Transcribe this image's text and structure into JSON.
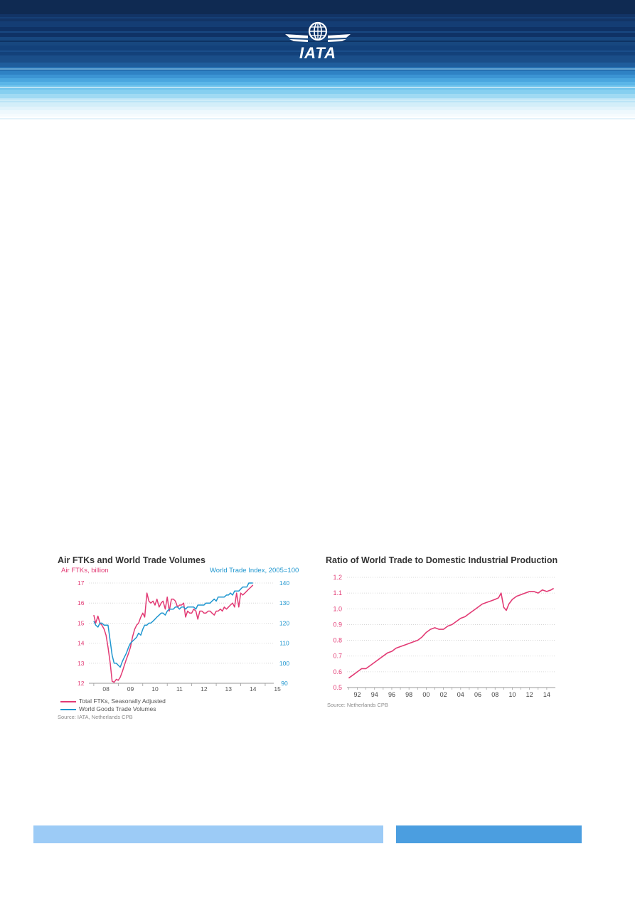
{
  "header": {
    "logo_text": "IATA",
    "colors": {
      "dark_navy": "#0d2f5e",
      "mid_blue": "#1b5fa6",
      "light_blue": "#6fc3ec",
      "pale_blue": "#d6eef9"
    },
    "icon": "globe-wings-icon"
  },
  "charts": {
    "left": {
      "title": "Air FTKs and World Trade Volumes",
      "left_axis_title": "Air FTKs, billion",
      "right_axis_title": "World Trade Index, 2005=100",
      "legend": [
        "Total FTKs, Seasonally Adjusted",
        "World Goods Trade Volumes"
      ],
      "source": "Source: IATA, Netherlands CPB"
    },
    "right": {
      "title": "Ratio of World Trade to Domestic Industrial Production",
      "source": "Source: Netherlands CPB"
    }
  },
  "colors": {
    "ftk": "#e23a74",
    "trade": "#1f96cf",
    "grid": "#cfcfcf",
    "footer_left": "#9ccbf6",
    "footer_right": "#4b9ee0"
  },
  "chart_data": [
    {
      "type": "line",
      "title": "Air FTKs and World Trade Volumes",
      "ylabel": "Air FTKs, billion",
      "y2label": "World Trade Index, 2005=100",
      "xticks": [
        "08",
        "09",
        "10",
        "11",
        "12",
        "13",
        "14",
        "15"
      ],
      "ylim": [
        12,
        17
      ],
      "yticks": [
        "12",
        "13",
        "14",
        "15",
        "16",
        "17"
      ],
      "y2lim": [
        90,
        140
      ],
      "y2ticks": [
        "90",
        "100",
        "110",
        "120",
        "130",
        "140"
      ],
      "grid": true,
      "legend_position": "bottom-left",
      "series": [
        {
          "name": "Total FTKs, Seasonally Adjusted",
          "axis": "left",
          "x": [
            2008.0,
            2008.08,
            2008.17,
            2008.25,
            2008.33,
            2008.42,
            2008.5,
            2008.58,
            2008.67,
            2008.75,
            2008.83,
            2008.92,
            2009.0,
            2009.08,
            2009.17,
            2009.25,
            2009.33,
            2009.42,
            2009.5,
            2009.58,
            2009.67,
            2009.75,
            2009.83,
            2009.92,
            2010.0,
            2010.08,
            2010.17,
            2010.25,
            2010.33,
            2010.42,
            2010.5,
            2010.58,
            2010.67,
            2010.75,
            2010.83,
            2010.92,
            2011.0,
            2011.08,
            2011.17,
            2011.25,
            2011.33,
            2011.42,
            2011.5,
            2011.58,
            2011.67,
            2011.75,
            2011.83,
            2011.92,
            2012.0,
            2012.08,
            2012.17,
            2012.25,
            2012.33,
            2012.42,
            2012.5,
            2012.58,
            2012.67,
            2012.75,
            2012.83,
            2012.92,
            2013.0,
            2013.08,
            2013.17,
            2013.25,
            2013.33,
            2013.42,
            2013.5,
            2013.58,
            2013.67,
            2013.75,
            2013.83,
            2013.92,
            2014.0,
            2014.08,
            2014.17,
            2014.25,
            2014.33,
            2014.42,
            2014.5
          ],
          "y": [
            15.4,
            15.0,
            15.35,
            15.0,
            14.9,
            14.7,
            14.4,
            13.8,
            13.0,
            12.1,
            12.05,
            12.2,
            12.15,
            12.3,
            12.6,
            12.9,
            13.2,
            13.5,
            13.8,
            14.3,
            14.7,
            14.9,
            15.0,
            15.3,
            15.5,
            15.3,
            16.5,
            16.1,
            16.0,
            16.1,
            15.9,
            16.2,
            15.8,
            16.0,
            16.1,
            15.7,
            16.3,
            15.6,
            16.2,
            16.2,
            16.1,
            15.8,
            15.9,
            15.9,
            16.0,
            15.3,
            15.6,
            15.5,
            15.5,
            15.7,
            15.6,
            15.2,
            15.6,
            15.6,
            15.5,
            15.5,
            15.6,
            15.6,
            15.5,
            15.4,
            15.6,
            15.6,
            15.7,
            15.6,
            15.8,
            15.7,
            15.8,
            15.9,
            16.0,
            15.8,
            16.5,
            15.8,
            16.5,
            16.4,
            16.5,
            16.6,
            16.7,
            16.8,
            16.9
          ]
        },
        {
          "name": "World Goods Trade Volumes",
          "axis": "right",
          "x": [
            2008.0,
            2008.08,
            2008.17,
            2008.25,
            2008.33,
            2008.42,
            2008.5,
            2008.58,
            2008.67,
            2008.75,
            2008.83,
            2008.92,
            2009.0,
            2009.08,
            2009.17,
            2009.25,
            2009.33,
            2009.42,
            2009.5,
            2009.58,
            2009.67,
            2009.75,
            2009.83,
            2009.92,
            2010.0,
            2010.08,
            2010.17,
            2010.25,
            2010.33,
            2010.42,
            2010.5,
            2010.58,
            2010.67,
            2010.75,
            2010.83,
            2010.92,
            2011.0,
            2011.08,
            2011.17,
            2011.25,
            2011.33,
            2011.42,
            2011.5,
            2011.58,
            2011.67,
            2011.75,
            2011.83,
            2011.92,
            2012.0,
            2012.08,
            2012.17,
            2012.25,
            2012.33,
            2012.42,
            2012.5,
            2012.58,
            2012.67,
            2012.75,
            2012.83,
            2012.92,
            2013.0,
            2013.08,
            2013.17,
            2013.25,
            2013.33,
            2013.42,
            2013.5,
            2013.58,
            2013.67,
            2013.75,
            2013.83,
            2013.92,
            2014.0,
            2014.08,
            2014.17,
            2014.25,
            2014.33,
            2014.42,
            2014.5
          ],
          "y": [
            121,
            119,
            118,
            120,
            120,
            119,
            119,
            119,
            111,
            104,
            100,
            100,
            99,
            98,
            101,
            103,
            105,
            108,
            110,
            111,
            112,
            113,
            115,
            114,
            117,
            119,
            119,
            120,
            120,
            121,
            122,
            123,
            124,
            125,
            125,
            124,
            126,
            127,
            127,
            127,
            128,
            128,
            127,
            128,
            128,
            127,
            128,
            128,
            128,
            128,
            127,
            129,
            129,
            129,
            129,
            130,
            130,
            130,
            131,
            132,
            131,
            133,
            133,
            133,
            133,
            134,
            134,
            135,
            134,
            136,
            136,
            136,
            137,
            138,
            138,
            138,
            140,
            140,
            140
          ]
        }
      ]
    },
    {
      "type": "line",
      "title": "Ratio of World Trade to Domestic Industrial Production",
      "xticks": [
        "92",
        "94",
        "96",
        "98",
        "00",
        "02",
        "04",
        "06",
        "08",
        "10",
        "12",
        "14"
      ],
      "ylim": [
        0.5,
        1.2
      ],
      "yticks": [
        "0.5",
        "0.6",
        "0.7",
        "0.8",
        "0.9",
        "1.0",
        "1.1",
        "1.2"
      ],
      "grid": true,
      "series": [
        {
          "name": "",
          "axis": "left",
          "x": [
            1991.0,
            1991.5,
            1992.0,
            1992.5,
            1993.0,
            1993.5,
            1994.0,
            1994.5,
            1995.0,
            1995.5,
            1996.0,
            1996.5,
            1997.0,
            1997.5,
            1998.0,
            1998.5,
            1999.0,
            1999.5,
            2000.0,
            2000.5,
            2001.0,
            2001.5,
            2002.0,
            2002.5,
            2003.0,
            2003.5,
            2004.0,
            2004.5,
            2005.0,
            2005.5,
            2006.0,
            2006.5,
            2007.0,
            2007.5,
            2008.0,
            2008.4,
            2008.7,
            2009.0,
            2009.3,
            2009.6,
            2010.0,
            2010.5,
            2011.0,
            2011.5,
            2012.0,
            2012.5,
            2013.0,
            2013.5,
            2014.0,
            2014.5,
            2014.8
          ],
          "y": [
            0.56,
            0.58,
            0.6,
            0.62,
            0.62,
            0.64,
            0.66,
            0.68,
            0.7,
            0.72,
            0.73,
            0.75,
            0.76,
            0.77,
            0.78,
            0.79,
            0.8,
            0.82,
            0.85,
            0.87,
            0.88,
            0.87,
            0.87,
            0.89,
            0.9,
            0.92,
            0.94,
            0.95,
            0.97,
            0.99,
            1.01,
            1.03,
            1.04,
            1.05,
            1.06,
            1.07,
            1.1,
            1.01,
            0.99,
            1.03,
            1.06,
            1.08,
            1.09,
            1.1,
            1.11,
            1.11,
            1.1,
            1.12,
            1.11,
            1.12,
            1.13
          ]
        }
      ]
    }
  ],
  "footer": {
    "left_bar": "",
    "right_bar": ""
  }
}
